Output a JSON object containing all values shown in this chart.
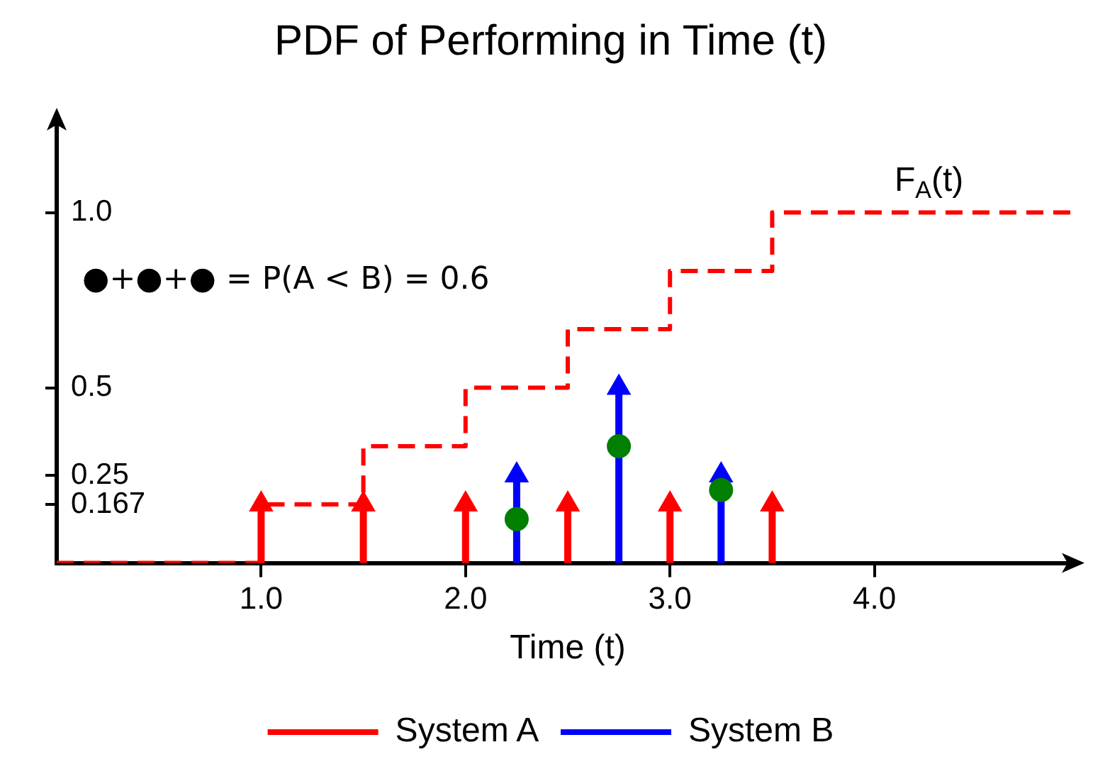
{
  "chart_data": {
    "type": "lollipop",
    "title": "PDF of Performing in Time (t)",
    "xlabel": "Time (t)",
    "xlim": [
      0,
      5
    ],
    "xticks": [
      {
        "value": 1,
        "label": "1.0"
      },
      {
        "value": 2,
        "label": "2.0"
      },
      {
        "value": 3,
        "label": "3.0"
      },
      {
        "value": 4,
        "label": "4.0"
      }
    ],
    "ylim": [
      0,
      1.25
    ],
    "yticks": [
      0.167,
      0.25,
      0.5,
      {
        "value": 1,
        "label": "1.0"
      }
    ],
    "grid": false,
    "legend": "bottom",
    "marker": "triangle",
    "annotations": [
      "●+●+● = P(A < B) = 0.6"
    ],
    "series": [
      {
        "name": "System A",
        "color": "#ff0000",
        "x": [
          1,
          1.5,
          2,
          2.5,
          3,
          3.5
        ],
        "values": [
          0.167,
          0.167,
          0.167,
          0.167,
          0.167,
          0.167
        ]
      },
      {
        "name": "System B",
        "color": "#0000ff",
        "x": [
          2.25,
          2.75,
          3.25
        ],
        "values": [
          0.25,
          0.5,
          0.25
        ]
      },
      {
        "name": "F$_{A}$(t)",
        "type": "step",
        "color": "#ff0000",
        "line_style": "dashed",
        "marker": "none",
        "x": [
          0,
          1,
          1.5,
          2,
          2.5,
          3,
          3.5,
          5
        ],
        "values": [
          0,
          0.167,
          0.333,
          0.5,
          0.667,
          0.833,
          1,
          1
        ]
      },
      {
        "type": "scatter",
        "color": "#007f00",
        "marker": "circle",
        "x": [
          2.25,
          2.75,
          3.25
        ],
        "values": [
          0.125,
          0.333,
          0.208
        ]
      }
    ]
  }
}
